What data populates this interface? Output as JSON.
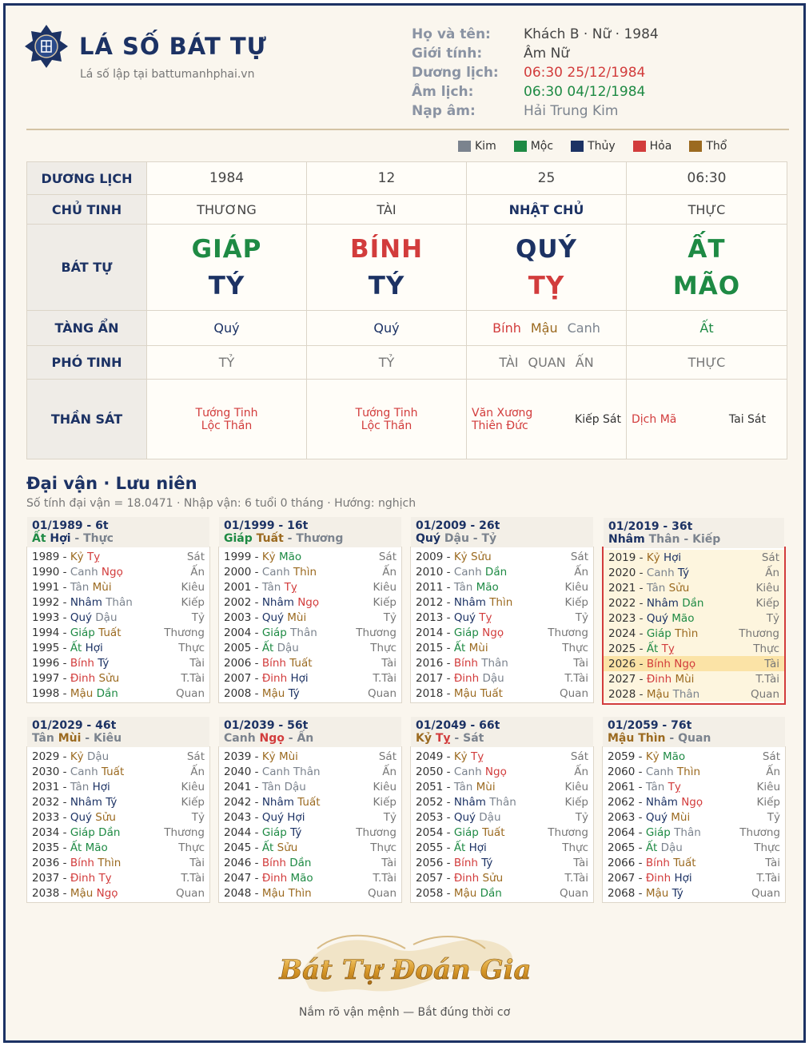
{
  "header": {
    "title": "LÁ SỐ BÁT TỰ",
    "subtitle": "Lá số lập tại battumanhphai.vn",
    "info": [
      {
        "label": "Họ và tên:",
        "value": "Khách B · Nữ · 1984",
        "color": "#444444"
      },
      {
        "label": "Giới tính:",
        "value": "Âm Nữ",
        "color": "#444444"
      },
      {
        "label": "Dương lịch:",
        "value": "06:30 25/12/1984",
        "color": "#d23c3c"
      },
      {
        "label": "Âm lịch:",
        "value": "06:30 04/12/1984",
        "color": "#1e8a44"
      },
      {
        "label": "Nạp âm:",
        "value": "Hải Trung Kim",
        "color": "#7b838e"
      }
    ]
  },
  "legend": [
    {
      "name": "Kim",
      "color": "#7b838e"
    },
    {
      "name": "Mộc",
      "color": "#1e8a44"
    },
    {
      "name": "Thủy",
      "color": "#1c3264"
    },
    {
      "name": "Hỏa",
      "color": "#d23c3c"
    },
    {
      "name": "Thổ",
      "color": "#9b6a20"
    }
  ],
  "table": {
    "row_labels": [
      "DƯƠNG LỊCH",
      "CHỦ TINH",
      "BÁT TỰ",
      "TÀNG ẨN",
      "PHÓ TINH",
      "THẦN SÁT"
    ],
    "duong_lich": [
      "1984",
      "12",
      "25",
      "06:30"
    ],
    "chu_tinh": [
      "THƯƠNG",
      "TÀI",
      "NHẬT CHỦ",
      "THỰC"
    ],
    "can": [
      {
        "text": "GIÁP",
        "el": "moc"
      },
      {
        "text": "BÍNH",
        "el": "hoa"
      },
      {
        "text": "QUÝ",
        "el": "thuy"
      },
      {
        "text": "ẤT",
        "el": "moc"
      }
    ],
    "chi": [
      {
        "text": "TÝ",
        "el": "thuy"
      },
      {
        "text": "TÝ",
        "el": "thuy"
      },
      {
        "text": "TỴ",
        "el": "hoa"
      },
      {
        "text": "MÃO",
        "el": "moc"
      }
    ],
    "tang_an": [
      [
        {
          "text": "Quý",
          "el": "thuy"
        }
      ],
      [
        {
          "text": "Quý",
          "el": "thuy"
        }
      ],
      [
        {
          "text": "Bính",
          "el": "hoa"
        },
        {
          "text": "Mậu",
          "el": "tho"
        },
        {
          "text": "Canh",
          "el": "kim"
        }
      ],
      [
        {
          "text": "Ất",
          "el": "moc"
        }
      ]
    ],
    "pho_tinh": [
      [
        "TỶ"
      ],
      [
        "TỶ"
      ],
      [
        "TÀI",
        "QUAN",
        "ẤN"
      ],
      [
        "THỰC"
      ]
    ],
    "than_sat": [
      {
        "left": [
          "Tướng Tinh",
          "Lộc Thần"
        ],
        "right": []
      },
      {
        "left": [
          "Tướng Tinh",
          "Lộc Thần"
        ],
        "right": []
      },
      {
        "left": [
          "Văn Xương",
          "Thiên Đức"
        ],
        "right": [
          "Kiếp Sát"
        ]
      },
      {
        "left": [
          "Dịch Mã"
        ],
        "right": [
          "Tai Sát"
        ]
      }
    ]
  },
  "dai_van": {
    "title": "Đại vận · Lưu niên",
    "subtitle": "Số tính đại vận = 18.0471 · Nhập vận: 6 tuổi 0 tháng · Hướng: nghịch",
    "star_labels": [
      "Sát",
      "Ấn",
      "Kiêu",
      "Kiếp",
      "Tỷ",
      "Thương",
      "Thực",
      "Tài",
      "T.Tài",
      "Quan"
    ],
    "periods": [
      {
        "head": "01/1989 - 6t",
        "can": {
          "text": "Ất",
          "el": "moc"
        },
        "chi": {
          "text": "Hợi",
          "el": "thuy"
        },
        "star": "Thực",
        "start": 1989,
        "years": [
          [
            "Kỷ",
            "tho",
            "Tỵ",
            "hoa"
          ],
          [
            "Canh",
            "kim",
            "Ngọ",
            "hoa"
          ],
          [
            "Tân",
            "kim",
            "Mùi",
            "tho"
          ],
          [
            "Nhâm",
            "thuy",
            "Thân",
            "kim"
          ],
          [
            "Quý",
            "thuy",
            "Dậu",
            "kim"
          ],
          [
            "Giáp",
            "moc",
            "Tuất",
            "tho"
          ],
          [
            "Ất",
            "moc",
            "Hợi",
            "thuy"
          ],
          [
            "Bính",
            "hoa",
            "Tý",
            "thuy"
          ],
          [
            "Đinh",
            "hoa",
            "Sửu",
            "tho"
          ],
          [
            "Mậu",
            "tho",
            "Dần",
            "moc"
          ]
        ]
      },
      {
        "head": "01/1999 - 16t",
        "can": {
          "text": "Giáp",
          "el": "moc"
        },
        "chi": {
          "text": "Tuất",
          "el": "tho"
        },
        "star": "Thương",
        "start": 1999,
        "years": [
          [
            "Kỷ",
            "tho",
            "Mão",
            "moc"
          ],
          [
            "Canh",
            "kim",
            "Thìn",
            "tho"
          ],
          [
            "Tân",
            "kim",
            "Tỵ",
            "hoa"
          ],
          [
            "Nhâm",
            "thuy",
            "Ngọ",
            "hoa"
          ],
          [
            "Quý",
            "thuy",
            "Mùi",
            "tho"
          ],
          [
            "Giáp",
            "moc",
            "Thân",
            "kim"
          ],
          [
            "Ất",
            "moc",
            "Dậu",
            "kim"
          ],
          [
            "Bính",
            "hoa",
            "Tuất",
            "tho"
          ],
          [
            "Đinh",
            "hoa",
            "Hợi",
            "thuy"
          ],
          [
            "Mậu",
            "tho",
            "Tý",
            "thuy"
          ]
        ]
      },
      {
        "head": "01/2009 - 26t",
        "can": {
          "text": "Quý",
          "el": "thuy"
        },
        "chi": {
          "text": "Dậu",
          "el": "kim"
        },
        "star": "Tỷ",
        "start": 2009,
        "years": [
          [
            "Kỷ",
            "tho",
            "Sửu",
            "tho"
          ],
          [
            "Canh",
            "kim",
            "Dần",
            "moc"
          ],
          [
            "Tân",
            "kim",
            "Mão",
            "moc"
          ],
          [
            "Nhâm",
            "thuy",
            "Thìn",
            "tho"
          ],
          [
            "Quý",
            "thuy",
            "Tỵ",
            "hoa"
          ],
          [
            "Giáp",
            "moc",
            "Ngọ",
            "hoa"
          ],
          [
            "Ất",
            "moc",
            "Mùi",
            "tho"
          ],
          [
            "Bính",
            "hoa",
            "Thân",
            "kim"
          ],
          [
            "Đinh",
            "hoa",
            "Dậu",
            "kim"
          ],
          [
            "Mậu",
            "tho",
            "Tuất",
            "tho"
          ]
        ]
      },
      {
        "head": "01/2019 - 36t",
        "can": {
          "text": "Nhâm",
          "el": "thuy"
        },
        "chi": {
          "text": "Thân",
          "el": "kim"
        },
        "star": "Kiếp",
        "start": 2019,
        "highlight": true,
        "current_year": 2026,
        "years": [
          [
            "Kỷ",
            "tho",
            "Hợi",
            "thuy"
          ],
          [
            "Canh",
            "kim",
            "Tý",
            "thuy"
          ],
          [
            "Tân",
            "kim",
            "Sửu",
            "tho"
          ],
          [
            "Nhâm",
            "thuy",
            "Dần",
            "moc"
          ],
          [
            "Quý",
            "thuy",
            "Mão",
            "moc"
          ],
          [
            "Giáp",
            "moc",
            "Thìn",
            "tho"
          ],
          [
            "Ất",
            "moc",
            "Tỵ",
            "hoa"
          ],
          [
            "Bính",
            "hoa",
            "Ngọ",
            "hoa"
          ],
          [
            "Đinh",
            "hoa",
            "Mùi",
            "tho"
          ],
          [
            "Mậu",
            "tho",
            "Thân",
            "kim"
          ]
        ]
      },
      {
        "head": "01/2029 - 46t",
        "can": {
          "text": "Tân",
          "el": "kim"
        },
        "chi": {
          "text": "Mùi",
          "el": "tho"
        },
        "star": "Kiêu",
        "start": 2029,
        "years": [
          [
            "Kỷ",
            "tho",
            "Dậu",
            "kim"
          ],
          [
            "Canh",
            "kim",
            "Tuất",
            "tho"
          ],
          [
            "Tân",
            "kim",
            "Hợi",
            "thuy"
          ],
          [
            "Nhâm",
            "thuy",
            "Tý",
            "thuy"
          ],
          [
            "Quý",
            "thuy",
            "Sửu",
            "tho"
          ],
          [
            "Giáp",
            "moc",
            "Dần",
            "moc"
          ],
          [
            "Ất",
            "moc",
            "Mão",
            "moc"
          ],
          [
            "Bính",
            "hoa",
            "Thìn",
            "tho"
          ],
          [
            "Đinh",
            "hoa",
            "Tỵ",
            "hoa"
          ],
          [
            "Mậu",
            "tho",
            "Ngọ",
            "hoa"
          ]
        ]
      },
      {
        "head": "01/2039 - 56t",
        "can": {
          "text": "Canh",
          "el": "kim"
        },
        "chi": {
          "text": "Ngọ",
          "el": "hoa"
        },
        "star": "Ấn",
        "start": 2039,
        "years": [
          [
            "Kỷ",
            "tho",
            "Mùi",
            "tho"
          ],
          [
            "Canh",
            "kim",
            "Thân",
            "kim"
          ],
          [
            "Tân",
            "kim",
            "Dậu",
            "kim"
          ],
          [
            "Nhâm",
            "thuy",
            "Tuất",
            "tho"
          ],
          [
            "Quý",
            "thuy",
            "Hợi",
            "thuy"
          ],
          [
            "Giáp",
            "moc",
            "Tý",
            "thuy"
          ],
          [
            "Ất",
            "moc",
            "Sửu",
            "tho"
          ],
          [
            "Bính",
            "hoa",
            "Dần",
            "moc"
          ],
          [
            "Đinh",
            "hoa",
            "Mão",
            "moc"
          ],
          [
            "Mậu",
            "tho",
            "Thìn",
            "tho"
          ]
        ]
      },
      {
        "head": "01/2049 - 66t",
        "can": {
          "text": "Kỷ",
          "el": "tho"
        },
        "chi": {
          "text": "Tỵ",
          "el": "hoa"
        },
        "star": "Sát",
        "start": 2049,
        "years": [
          [
            "Kỷ",
            "tho",
            "Tỵ",
            "hoa"
          ],
          [
            "Canh",
            "kim",
            "Ngọ",
            "hoa"
          ],
          [
            "Tân",
            "kim",
            "Mùi",
            "tho"
          ],
          [
            "Nhâm",
            "thuy",
            "Thân",
            "kim"
          ],
          [
            "Quý",
            "thuy",
            "Dậu",
            "kim"
          ],
          [
            "Giáp",
            "moc",
            "Tuất",
            "tho"
          ],
          [
            "Ất",
            "moc",
            "Hợi",
            "thuy"
          ],
          [
            "Bính",
            "hoa",
            "Tý",
            "thuy"
          ],
          [
            "Đinh",
            "hoa",
            "Sửu",
            "tho"
          ],
          [
            "Mậu",
            "tho",
            "Dần",
            "moc"
          ]
        ]
      },
      {
        "head": "01/2059 - 76t",
        "can": {
          "text": "Mậu",
          "el": "tho"
        },
        "chi": {
          "text": "Thìn",
          "el": "tho"
        },
        "star": "Quan",
        "start": 2059,
        "years": [
          [
            "Kỷ",
            "tho",
            "Mão",
            "moc"
          ],
          [
            "Canh",
            "kim",
            "Thìn",
            "tho"
          ],
          [
            "Tân",
            "kim",
            "Tỵ",
            "hoa"
          ],
          [
            "Nhâm",
            "thuy",
            "Ngọ",
            "hoa"
          ],
          [
            "Quý",
            "thuy",
            "Mùi",
            "tho"
          ],
          [
            "Giáp",
            "moc",
            "Thân",
            "kim"
          ],
          [
            "Ất",
            "moc",
            "Dậu",
            "kim"
          ],
          [
            "Bính",
            "hoa",
            "Tuất",
            "tho"
          ],
          [
            "Đinh",
            "hoa",
            "Hợi",
            "thuy"
          ],
          [
            "Mậu",
            "tho",
            "Tý",
            "thuy"
          ]
        ]
      }
    ]
  },
  "footer": {
    "logo_text": "Bát Tự Đoán Gia",
    "tagline": "Nắm rõ vận mệnh — Bắt đúng thời cơ"
  }
}
